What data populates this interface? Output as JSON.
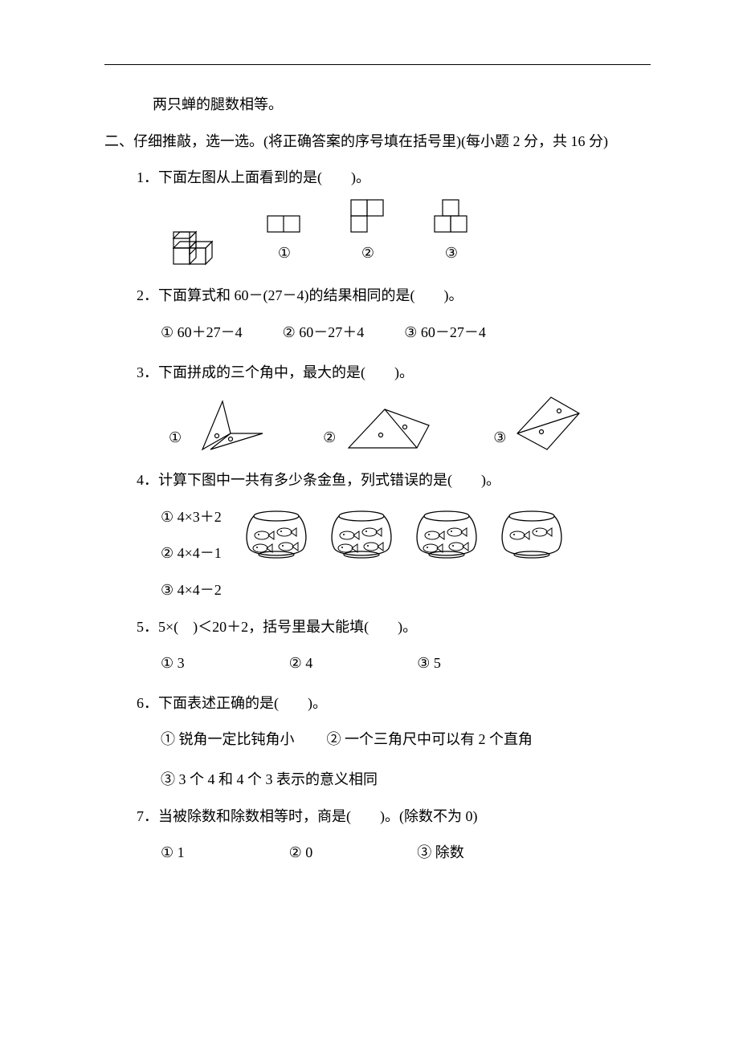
{
  "top_line": "两只蝉的腿数相等。",
  "section": {
    "label": "二、仔细推敲，选一选。(将正确答案的序号填在括号里)(每小题 2 分，共 16 分)"
  },
  "q1": {
    "text": "1．下面左图从上面看到的是(　　)。",
    "opt_labels": [
      "①",
      "②",
      "③"
    ]
  },
  "q2": {
    "text": "2．下面算式和 60－(27－4)的结果相同的是(　　)。",
    "opts": [
      "①  60＋27－4",
      "②  60－27＋4",
      "③  60－27－4"
    ]
  },
  "q3": {
    "text": "3．下面拼成的三个角中，最大的是(　　)。",
    "opt_labels": [
      "①",
      "②",
      "③"
    ]
  },
  "q4": {
    "text": "4．计算下图中一共有多少条金鱼，列式错误的是(　　)。",
    "opts": [
      "①  4×3＋2",
      "②  4×4－1",
      "③  4×4－2"
    ],
    "bowls": [
      4,
      4,
      4,
      2
    ]
  },
  "q5": {
    "text": "5．5×(　)＜20＋2，括号里最大能填(　　)。",
    "opts": [
      "①  3",
      "②  4",
      "③  5"
    ]
  },
  "q6": {
    "text": "6．下面表述正确的是(　　)。",
    "line1a": "①  锐角一定比钝角小",
    "line1b": "②  一个三角尺中可以有 2 个直角",
    "line2": "③  3 个 4 和 4 个 3 表示的意义相同"
  },
  "q7": {
    "text": "7．当被除数和除数相等时，商是(　　)。(除数不为 0)",
    "opts": [
      "①  1",
      "②  0",
      "③  除数"
    ]
  },
  "svg_style": {
    "stroke": "#000",
    "fill": "none",
    "stroke_width": 1.3
  }
}
